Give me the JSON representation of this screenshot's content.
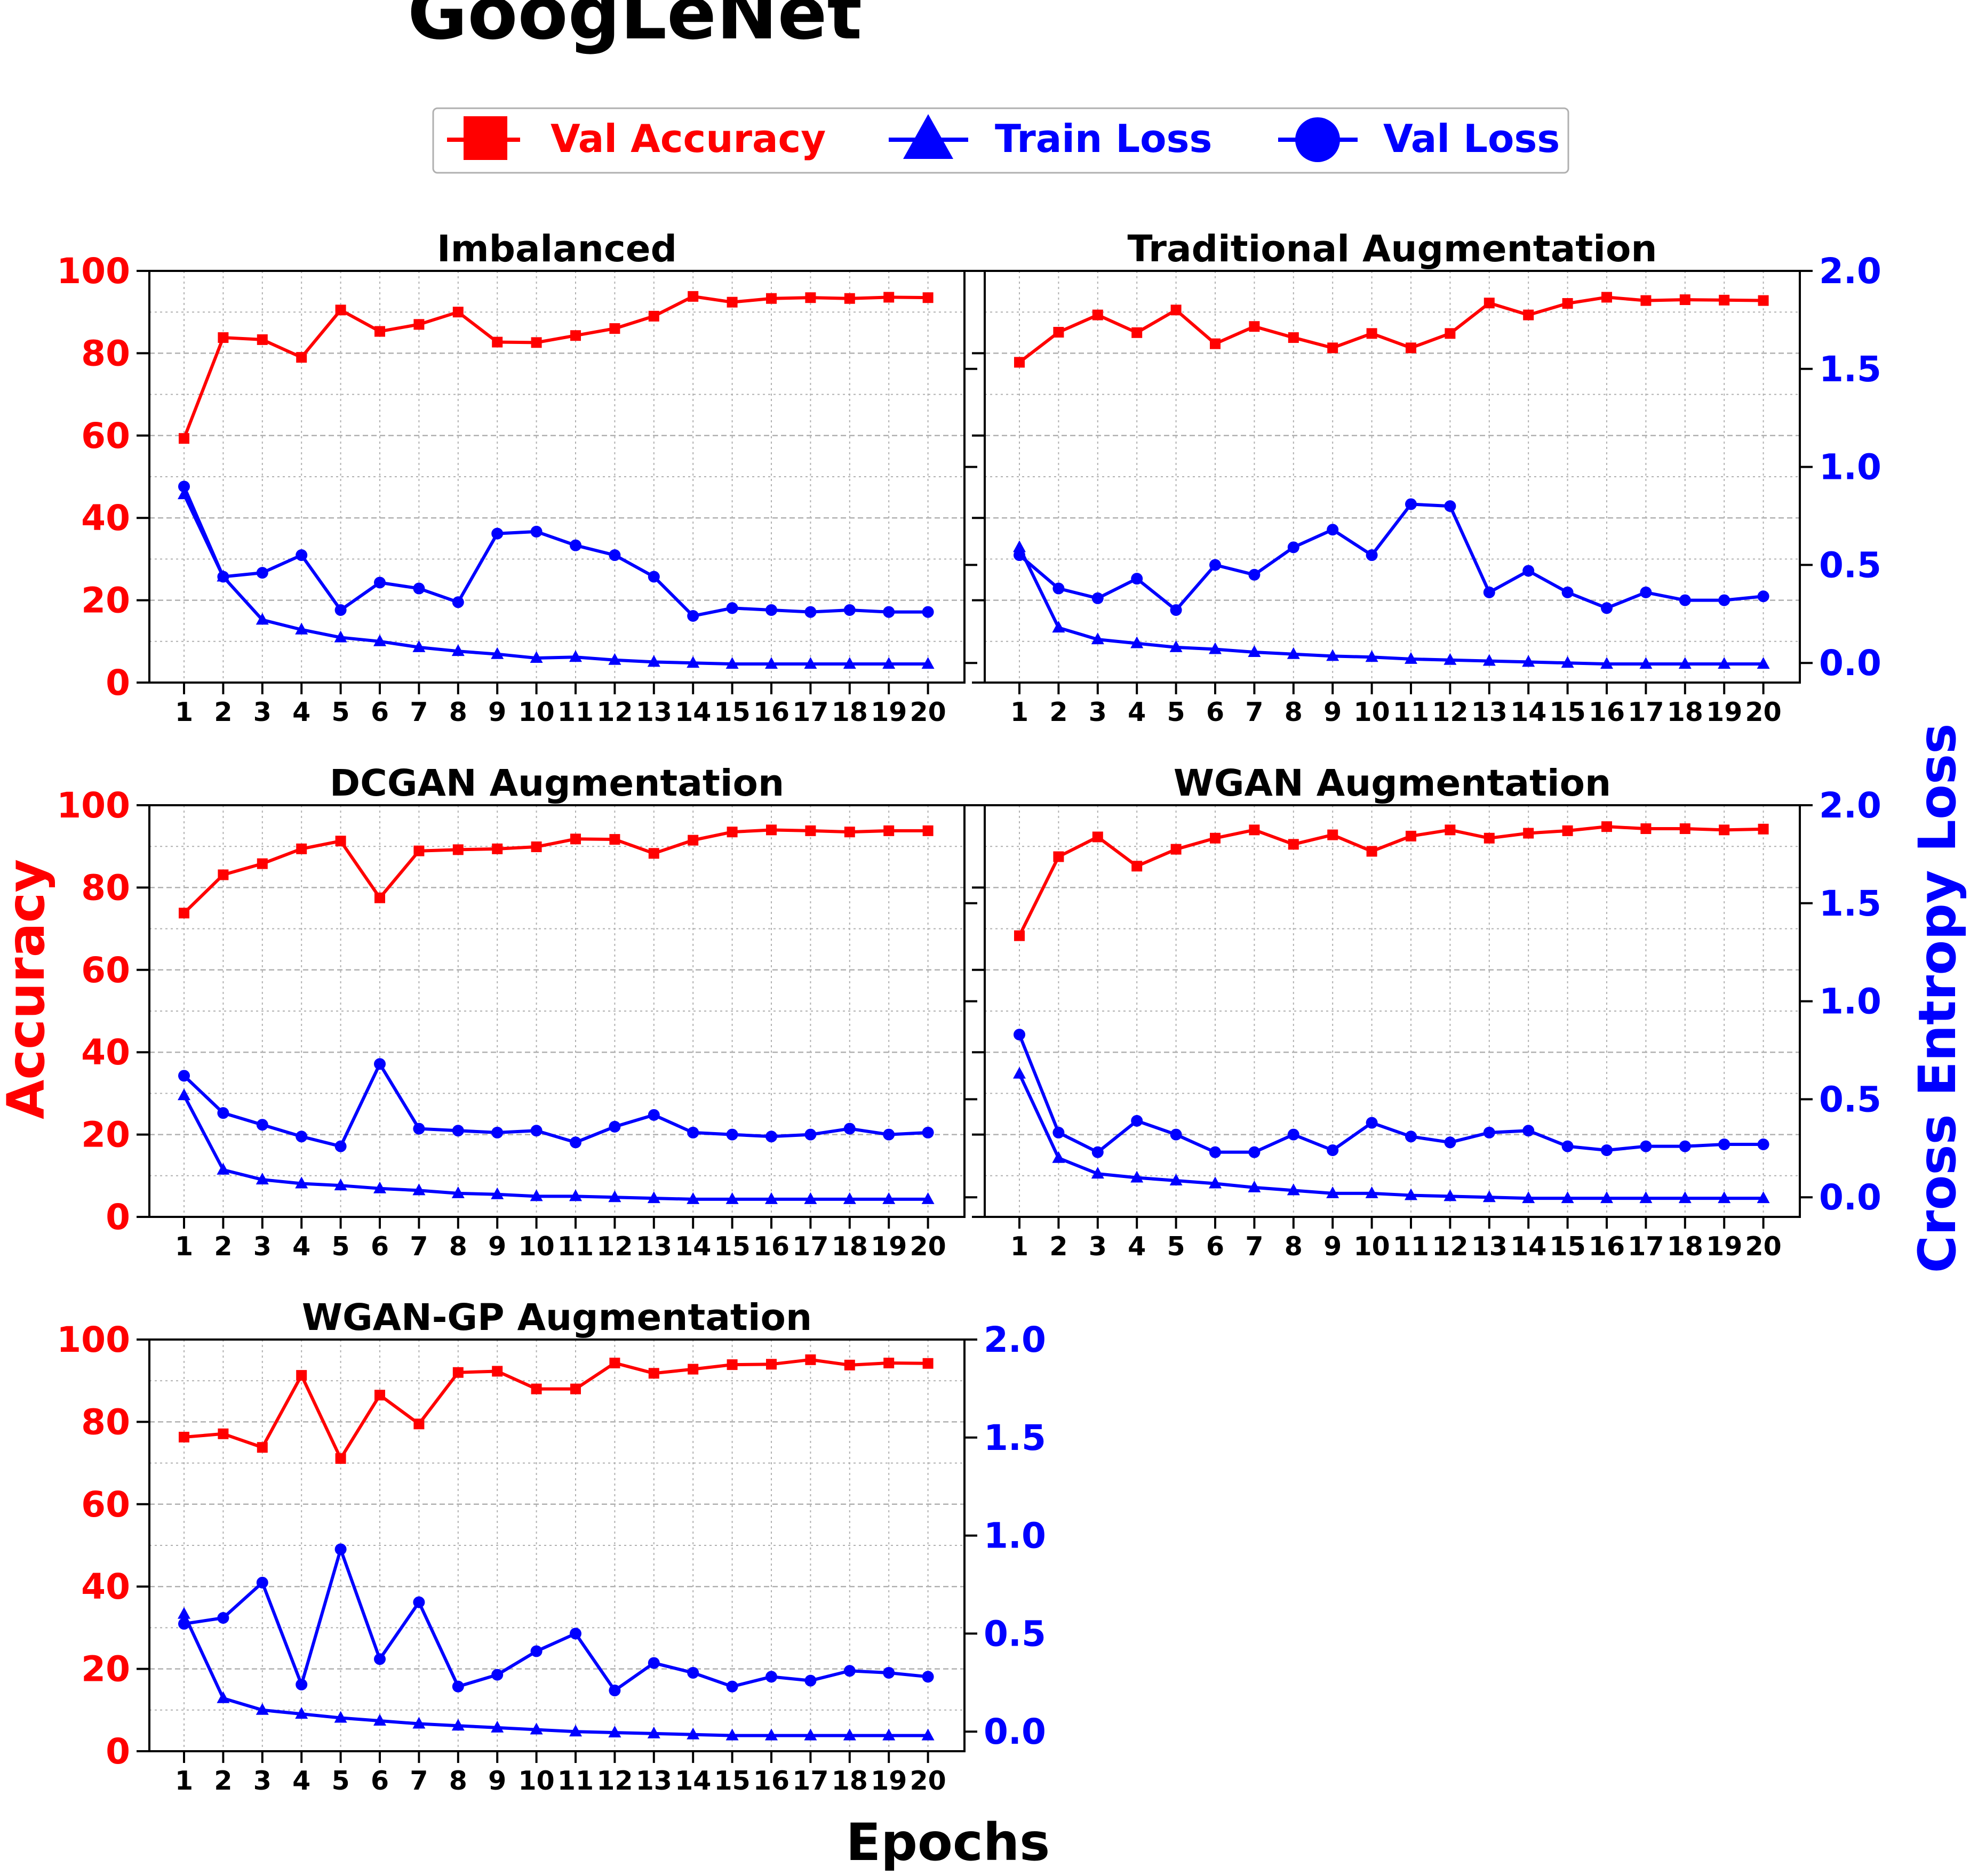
{
  "figure": {
    "title": "GoogLeNet",
    "xlabel": "Epochs",
    "ylabel_left": "Accuracy",
    "ylabel_right": "Cross Entropy Loss"
  },
  "legend": {
    "items": [
      {
        "label": "Val Accuracy",
        "color": "#ff0000",
        "marker": "square"
      },
      {
        "label": "Train Loss",
        "color": "#0000ff",
        "marker": "triangle"
      },
      {
        "label": "Val Loss",
        "color": "#0000ff",
        "marker": "circle"
      }
    ]
  },
  "colors": {
    "accuracy": "#ff0000",
    "loss": "#0000ff",
    "grid": "#b0b0b0"
  },
  "chart_data": [
    {
      "type": "line",
      "title": "Imbalanced",
      "x": [
        1,
        2,
        3,
        4,
        5,
        6,
        7,
        8,
        9,
        10,
        11,
        12,
        13,
        14,
        15,
        16,
        17,
        18,
        19,
        20
      ],
      "ylim_left": [
        0,
        100
      ],
      "ylim_right": [
        -0.1,
        2.0
      ],
      "yticks_left": [
        0,
        20,
        40,
        60,
        80,
        100
      ],
      "yticks_right": [],
      "series": [
        {
          "name": "Val Accuracy",
          "axis": "left",
          "marker": "square",
          "values": [
            59.3,
            83.8,
            83.3,
            79.0,
            90.5,
            85.3,
            87.0,
            90.0,
            82.7,
            82.6,
            84.3,
            86.0,
            89.0,
            93.8,
            92.4,
            93.3,
            93.5,
            93.3,
            93.6,
            93.5
          ]
        },
        {
          "name": "Train Loss",
          "axis": "right",
          "marker": "triangle",
          "values": [
            0.86,
            0.44,
            0.22,
            0.17,
            0.13,
            0.11,
            0.08,
            0.06,
            0.045,
            0.025,
            0.03,
            0.015,
            0.005,
            0.0,
            -0.005,
            -0.005,
            -0.005,
            -0.005,
            -0.005,
            -0.005
          ]
        },
        {
          "name": "Val Loss",
          "axis": "right",
          "marker": "circle",
          "values": [
            0.9,
            0.44,
            0.46,
            0.55,
            0.27,
            0.41,
            0.38,
            0.31,
            0.66,
            0.67,
            0.6,
            0.55,
            0.44,
            0.24,
            0.28,
            0.27,
            0.26,
            0.27,
            0.26,
            0.26
          ]
        }
      ]
    },
    {
      "type": "line",
      "title": "Traditional Augmentation",
      "x": [
        1,
        2,
        3,
        4,
        5,
        6,
        7,
        8,
        9,
        10,
        11,
        12,
        13,
        14,
        15,
        16,
        17,
        18,
        19,
        20
      ],
      "ylim_left": [
        0,
        100
      ],
      "ylim_right": [
        -0.1,
        2.0
      ],
      "yticks_left": [],
      "yticks_right": [
        0.0,
        0.5,
        1.0,
        1.5,
        2.0
      ],
      "series": [
        {
          "name": "Val Accuracy",
          "axis": "left",
          "marker": "square",
          "values": [
            77.8,
            85.1,
            89.3,
            85.0,
            90.5,
            82.3,
            86.5,
            83.8,
            81.3,
            84.8,
            81.3,
            84.8,
            92.2,
            89.3,
            92.1,
            93.6,
            92.8,
            93.0,
            92.9,
            92.8
          ]
        },
        {
          "name": "Train Loss",
          "axis": "right",
          "marker": "triangle",
          "values": [
            0.59,
            0.18,
            0.12,
            0.1,
            0.08,
            0.07,
            0.055,
            0.045,
            0.035,
            0.03,
            0.02,
            0.015,
            0.01,
            0.005,
            0.0,
            -0.005,
            -0.005,
            -0.005,
            -0.005,
            -0.005
          ]
        },
        {
          "name": "Val Loss",
          "axis": "right",
          "marker": "circle",
          "values": [
            0.55,
            0.38,
            0.33,
            0.43,
            0.27,
            0.5,
            0.45,
            0.59,
            0.68,
            0.55,
            0.81,
            0.8,
            0.36,
            0.47,
            0.36,
            0.28,
            0.36,
            0.32,
            0.32,
            0.34
          ]
        }
      ]
    },
    {
      "type": "line",
      "title": "DCGAN Augmentation",
      "x": [
        1,
        2,
        3,
        4,
        5,
        6,
        7,
        8,
        9,
        10,
        11,
        12,
        13,
        14,
        15,
        16,
        17,
        18,
        19,
        20
      ],
      "ylim_left": [
        0,
        100
      ],
      "ylim_right": [
        -0.1,
        2.0
      ],
      "yticks_left": [
        0,
        20,
        40,
        60,
        80,
        100
      ],
      "yticks_right": [],
      "series": [
        {
          "name": "Val Accuracy",
          "axis": "left",
          "marker": "square",
          "values": [
            73.8,
            83.1,
            85.8,
            89.4,
            91.3,
            77.5,
            88.9,
            89.2,
            89.4,
            89.9,
            91.8,
            91.7,
            88.3,
            91.5,
            93.5,
            94.0,
            93.8,
            93.5,
            93.8,
            93.8
          ]
        },
        {
          "name": "Train Loss",
          "axis": "right",
          "marker": "triangle",
          "values": [
            0.52,
            0.14,
            0.09,
            0.07,
            0.06,
            0.045,
            0.035,
            0.02,
            0.015,
            0.005,
            0.005,
            0.0,
            -0.005,
            -0.01,
            -0.01,
            -0.01,
            -0.01,
            -0.01,
            -0.01,
            -0.01
          ]
        },
        {
          "name": "Val Loss",
          "axis": "right",
          "marker": "circle",
          "values": [
            0.62,
            0.43,
            0.37,
            0.31,
            0.26,
            0.68,
            0.35,
            0.34,
            0.33,
            0.34,
            0.28,
            0.36,
            0.42,
            0.33,
            0.32,
            0.31,
            0.32,
            0.35,
            0.32,
            0.33
          ]
        }
      ]
    },
    {
      "type": "line",
      "title": "WGAN Augmentation",
      "x": [
        1,
        2,
        3,
        4,
        5,
        6,
        7,
        8,
        9,
        10,
        11,
        12,
        13,
        14,
        15,
        16,
        17,
        18,
        19,
        20
      ],
      "ylim_left": [
        0,
        100
      ],
      "ylim_right": [
        -0.1,
        2.0
      ],
      "yticks_left": [],
      "yticks_right": [
        0.0,
        0.5,
        1.0,
        1.5,
        2.0
      ],
      "series": [
        {
          "name": "Val Accuracy",
          "axis": "left",
          "marker": "square",
          "values": [
            68.3,
            87.5,
            92.3,
            85.2,
            89.3,
            92.0,
            94.0,
            90.5,
            92.8,
            88.8,
            92.5,
            94.0,
            92.0,
            93.2,
            93.8,
            94.8,
            94.3,
            94.3,
            94.0,
            94.2
          ]
        },
        {
          "name": "Train Loss",
          "axis": "right",
          "marker": "triangle",
          "values": [
            0.63,
            0.2,
            0.12,
            0.1,
            0.085,
            0.07,
            0.05,
            0.035,
            0.02,
            0.02,
            0.01,
            0.005,
            0.0,
            -0.005,
            -0.005,
            -0.005,
            -0.005,
            -0.005,
            -0.005,
            -0.005
          ]
        },
        {
          "name": "Val Loss",
          "axis": "right",
          "marker": "circle",
          "values": [
            0.83,
            0.33,
            0.23,
            0.39,
            0.32,
            0.23,
            0.23,
            0.32,
            0.24,
            0.38,
            0.31,
            0.28,
            0.33,
            0.34,
            0.26,
            0.24,
            0.26,
            0.26,
            0.27,
            0.27
          ]
        }
      ]
    },
    {
      "type": "line",
      "title": "WGAN-GP Augmentation",
      "x": [
        1,
        2,
        3,
        4,
        5,
        6,
        7,
        8,
        9,
        10,
        11,
        12,
        13,
        14,
        15,
        16,
        17,
        18,
        19,
        20
      ],
      "ylim_left": [
        0,
        100
      ],
      "ylim_right": [
        -0.1,
        2.0
      ],
      "yticks_left": [
        0,
        20,
        40,
        60,
        80,
        100
      ],
      "yticks_right": [
        0.0,
        0.5,
        1.0,
        1.5,
        2.0
      ],
      "series": [
        {
          "name": "Val Accuracy",
          "axis": "left",
          "marker": "square",
          "values": [
            76.3,
            77.1,
            73.8,
            91.3,
            71.1,
            86.5,
            79.5,
            92.0,
            92.3,
            88.0,
            88.0,
            94.3,
            91.8,
            92.8,
            93.9,
            94.0,
            95.1,
            93.8,
            94.3,
            94.2
          ]
        },
        {
          "name": "Train Loss",
          "axis": "right",
          "marker": "triangle",
          "values": [
            0.6,
            0.17,
            0.11,
            0.09,
            0.07,
            0.055,
            0.04,
            0.03,
            0.02,
            0.01,
            0.0,
            -0.005,
            -0.01,
            -0.015,
            -0.02,
            -0.02,
            -0.02,
            -0.02,
            -0.02,
            -0.02
          ]
        },
        {
          "name": "Val Loss",
          "axis": "right",
          "marker": "circle",
          "values": [
            0.55,
            0.58,
            0.76,
            0.24,
            0.93,
            0.37,
            0.66,
            0.23,
            0.29,
            0.41,
            0.5,
            0.21,
            0.35,
            0.3,
            0.23,
            0.28,
            0.26,
            0.31,
            0.3,
            0.28
          ]
        }
      ]
    }
  ]
}
